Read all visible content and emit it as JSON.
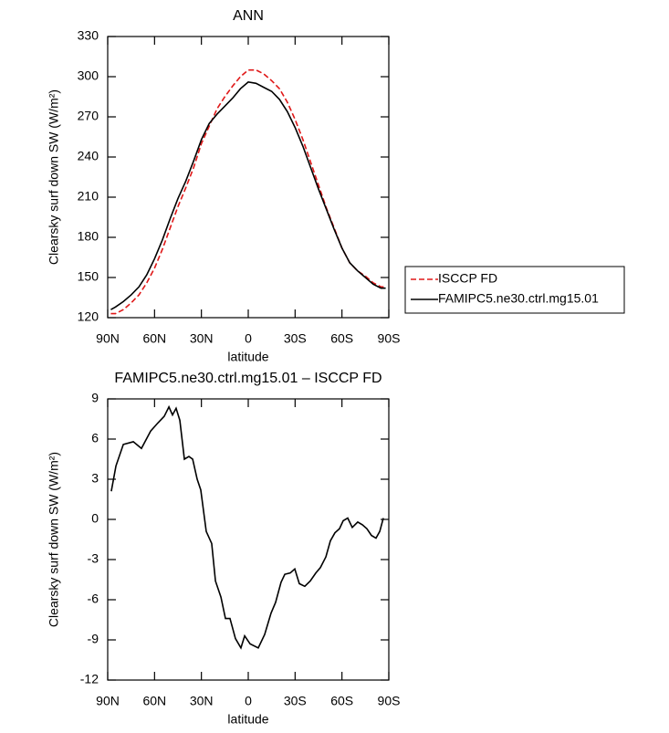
{
  "chart_data": [
    {
      "type": "line",
      "title": "ANN",
      "x_label": "latitude",
      "y_label": "Clearsky surf down SW (W/m²)",
      "x": [
        88,
        85,
        80,
        75,
        70,
        65,
        60,
        55,
        50,
        45,
        40,
        35,
        30,
        25,
        20,
        15,
        10,
        5,
        0,
        -5,
        -10,
        -15,
        -20,
        -25,
        -30,
        -35,
        -40,
        -45,
        -50,
        -55,
        -60,
        -65,
        -70,
        -75,
        -80,
        -85,
        -88
      ],
      "series": [
        {
          "name": "ISCCP FD",
          "color": "#e01818",
          "dash": true,
          "values": [
            123,
            123,
            126,
            131,
            137,
            146,
            157,
            171,
            187,
            203,
            217,
            232,
            250,
            263,
            276,
            285,
            293,
            300,
            305,
            305,
            302,
            297,
            291,
            281,
            268,
            253,
            236,
            219,
            202,
            187,
            172,
            161,
            155,
            151,
            146,
            143,
            143
          ]
        },
        {
          "name": "FAMIPC5.ne30.ctrl.mg15.01",
          "color": "#000000",
          "dash": false,
          "values": [
            126,
            128,
            132,
            137,
            143,
            152,
            164,
            178,
            194,
            209,
            222,
            237,
            253,
            265,
            272,
            278,
            284,
            291,
            296,
            295,
            292,
            289,
            283,
            274,
            262,
            248,
            232,
            216,
            201,
            186,
            172,
            161,
            155,
            150,
            145,
            142,
            142
          ]
        }
      ],
      "xlim": [
        90,
        -90
      ],
      "xticks": [
        {
          "value": 90,
          "label": "90N"
        },
        {
          "value": 60,
          "label": "60N"
        },
        {
          "value": 30,
          "label": "30N"
        },
        0,
        {
          "value": -30,
          "label": "30S"
        },
        {
          "value": -60,
          "label": "60S"
        },
        {
          "value": -90,
          "label": "90S"
        }
      ],
      "ylim": [
        120,
        330
      ],
      "yticks": [
        120,
        150,
        180,
        210,
        240,
        270,
        300,
        330
      ],
      "legend": "right"
    },
    {
      "type": "line",
      "title": "FAMIPC5.ne30.ctrl.mg15.01 – ISCCP FD",
      "x_label": "latitude",
      "y_label": "Clearsky surf down SW (W/m²)",
      "x": [
        87.7,
        84.7,
        80,
        73.6,
        68.4,
        62.5,
        57.9,
        53.8,
        50.8,
        48.5,
        46.2,
        43.8,
        40.9,
        38,
        35.6,
        32.7,
        30.4,
        26.9,
        23.4,
        21,
        17.5,
        14.6,
        11.7,
        8.2,
        4.7,
        2.3,
        -1.2,
        -6.4,
        -10.5,
        -14.6,
        -17.5,
        -21,
        -23.4,
        -26.9,
        -29.8,
        -32.7,
        -36.2,
        -39.7,
        -43.3,
        -46.2,
        -49.7,
        -52.6,
        -55.5,
        -58.4,
        -60.8,
        -63.7,
        -66.6,
        -70.1,
        -73.1,
        -76,
        -78.9,
        -81.8,
        -84.2,
        -86.5
      ],
      "series": [
        {
          "color": "#000000",
          "dash": false,
          "values": [
            2.1,
            4,
            5.6,
            5.8,
            5.3,
            6.6,
            7.2,
            7.7,
            8.4,
            7.8,
            8.3,
            7.4,
            4.5,
            4.7,
            4.5,
            3.0,
            2.2,
            -0.9,
            -1.8,
            -4.6,
            -5.8,
            -7.4,
            -7.4,
            -8.9,
            -9.6,
            -8.7,
            -9.3,
            -9.6,
            -8.6,
            -7,
            -6.2,
            -4.7,
            -4.1,
            -4.0,
            -3.7,
            -4.8,
            -5.0,
            -4.6,
            -4.0,
            -3.6,
            -2.8,
            -1.6,
            -1.0,
            -0.7,
            -0.1,
            0.1,
            -0.6,
            -0.2,
            -0.4,
            -0.7,
            -1.2,
            -1.4,
            -0.9,
            0.1
          ]
        }
      ],
      "xlim": [
        90,
        -90
      ],
      "xticks": [
        {
          "value": 90,
          "label": "90N"
        },
        {
          "value": 60,
          "label": "60N"
        },
        {
          "value": 30,
          "label": "30N"
        },
        0,
        {
          "value": -30,
          "label": "30S"
        },
        {
          "value": -60,
          "label": "60S"
        },
        {
          "value": -90,
          "label": "90S"
        }
      ],
      "ylim": [
        -12,
        9
      ],
      "yticks": [
        -12,
        -9,
        -6,
        -3,
        0,
        3,
        6,
        9
      ]
    }
  ]
}
